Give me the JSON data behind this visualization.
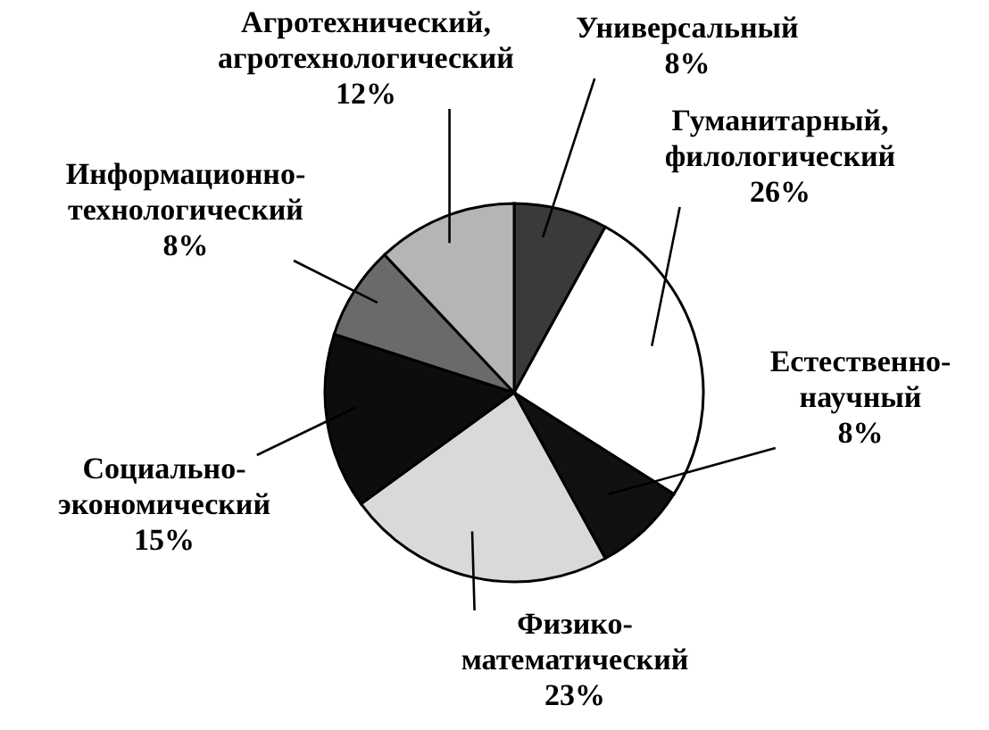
{
  "chart_data": {
    "type": "pie",
    "categories": [
      "Универсальный",
      "Гуманитарный, филологический",
      "Естественно-научный",
      "Физико-математический",
      "Социально-экономический",
      "Информационно-технологический",
      "Агротехнический, агротехнологический"
    ],
    "values": [
      8,
      26,
      8,
      23,
      15,
      8,
      12
    ],
    "value_labels": [
      "8%",
      "26%",
      "8%",
      "23%",
      "15%",
      "8%",
      "12%"
    ],
    "colors": [
      "#3a3a3a",
      "#ffffff",
      "#111111",
      "#d9d9d9",
      "#0d0d0d",
      "#6a6a6a",
      "#b5b5b5"
    ],
    "legend": false
  }
}
